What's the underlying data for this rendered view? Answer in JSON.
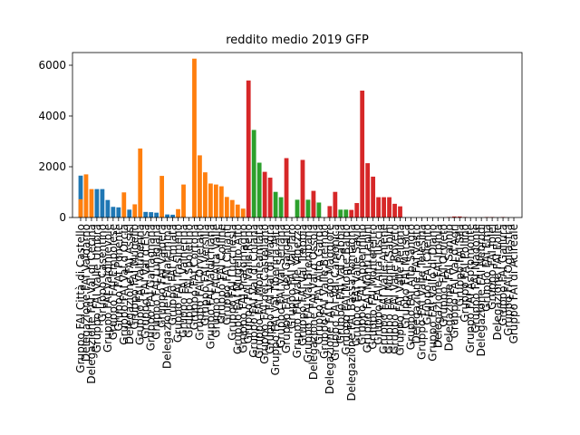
{
  "chart_data": {
    "type": "bar",
    "title": "reddito medio  2019  GFP",
    "xlabel": "",
    "ylabel": "",
    "ylim": [
      0,
      6500
    ],
    "yticks": [
      0,
      2000,
      4000,
      6000
    ],
    "grid": false,
    "legend": "none",
    "colors": {
      "blue": "#1f77b4",
      "orange": "#ff7f0e",
      "green": "#2ca02c",
      "red": "#d62728"
    },
    "categories": [
      "Gruppo FAI Città di Castello",
      "Delegazione FAI Valdarno",
      "Delegazione FAI Val di Cecina",
      "Gruppo FAI Valle Umbra",
      "Gruppo Casentino",
      "Gruppo FAI Valdinievole",
      "Gruppo FAI Empolese",
      "Gruppo FAI Ponente",
      "Gruppo FAI Val d'Orcia",
      "Delegazione FAI Assisi",
      "Gruppo FAI Mugello",
      "Gruppo FAI Valtiberina",
      "Gruppo FAI Val d'Elsa",
      "Gruppo FAI Garfagnana",
      "Gruppo FAI Lunigiana",
      "Gruppo FAI Valdera",
      "Delegazione FAI Maremma",
      "Gruppo FAI Amiata",
      "Gruppo FAI Trasimeno",
      "Gruppo FAI Valnerina",
      "Gruppo FAI Spoletino",
      "Gruppo FAI Cortona",
      "Gruppo FAI Orvietano",
      "Gruppo FAI Versilia",
      "Gruppo FAI Valdichiana",
      "Gruppo FAI Alta Valle",
      "Gruppo FAI Colline",
      "Gruppo FAI Chianti",
      "Gruppo FAI Lucchesia",
      "Gruppo FAI Mugello Alto",
      "Gruppo FAI Pratomagno",
      "Gruppo FAI Valle Reno",
      "Gruppo FAI Val di Chiana",
      "Gruppo FAI Monteamiata",
      "Gruppo FAI del Castellano",
      "Gruppo FAI Val di Magra",
      "Gruppo FAI Val Tiberina Alta",
      "Gruppo FAI Val Seriana",
      "Gruppo FAI del Gargano",
      "Gruppo FAI Val Taro",
      "Gruppo FAI Valle Vigezzo",
      "Gruppo FAI Val Trebbia",
      "Gruppo FAI Val Brembana",
      "Delegazione FAI Val d'Ossola",
      "Gruppo FAI Alto Garda",
      "Gruppo FAI Valle Brembo",
      "Delegazione FAI Lago Maggiore",
      "Gruppo FAI Val Camonica",
      "Gruppo FAI Val Sabbia",
      "Gruppo FAI Monte Baldo",
      "Delegazione FAI Bassa Romagna",
      "Gruppo FAI Valle Savio",
      "Gruppo FAI Appennino",
      "Gruppo FAI Monti Lepini",
      "Gruppo FAI Montefeltro",
      "Gruppo FAI Alta Tuscia",
      "Gruppo FAI Valle Aniene",
      "Gruppo FAI Monti Sabini",
      "Gruppo FAI Valle Roveto",
      "Gruppo FAI Valle Peligna",
      "Gruppo FAI Marsica",
      "Gruppo FAI Alto Sangro",
      "Delegazione FAI Vasto",
      "Gruppo FAI Valle Telesina",
      "Gruppo FAI Cilento",
      "Gruppo FAI Vallo di Diano",
      "Delegazione FAI Irpinia",
      "Gruppo FAI Orvieto",
      "Delegazione FAI Sannio",
      "Gruppo FAI Val d'Agri",
      "Gruppo FAI Sila",
      "Gruppo FAI Pollino",
      "Gruppo FAI Aspromonte",
      "Gruppo FAI Madonie",
      "Delegazione FAI Nebrodi",
      "Gruppo FAI Etna",
      "Gruppo FAI Iblei",
      "Delegazione FAI Eolie",
      "Gruppo FAI Gallura",
      "Gruppo FAI Ogliastra",
      "Gruppo FAI di Acireale"
    ],
    "series": [
      {
        "color": "#1f77b4",
        "values": [
          1650,
          0,
          0,
          1120,
          1120,
          690,
          420,
          400,
          0,
          310,
          0,
          0,
          220,
          210,
          190,
          0,
          120,
          110,
          0,
          80,
          0,
          0,
          90,
          0,
          0,
          0,
          0,
          0,
          70,
          0,
          0,
          0,
          0,
          0,
          0,
          0,
          0,
          0,
          0,
          0,
          0,
          0,
          0,
          0,
          0,
          0,
          0,
          0,
          0,
          0,
          0,
          0,
          0,
          0,
          0,
          0,
          0,
          0,
          0,
          0,
          0,
          0,
          0,
          0,
          0,
          0,
          0,
          0,
          0,
          0,
          0,
          0,
          0,
          0,
          0,
          0,
          0,
          0,
          0,
          0,
          0
        ]
      },
      {
        "color": "#ff7f0e",
        "values": [
          720,
          1700,
          1120,
          0,
          0,
          0,
          0,
          0,
          990,
          0,
          520,
          2720,
          0,
          0,
          0,
          1640,
          0,
          0,
          330,
          1300,
          0,
          6260,
          2450,
          1780,
          1340,
          1300,
          1230,
          810,
          690,
          510,
          350,
          300,
          0,
          0,
          0,
          0,
          0,
          0,
          0,
          0,
          0,
          0,
          0,
          0,
          0,
          0,
          0,
          0,
          0,
          0,
          0,
          0,
          0,
          0,
          0,
          0,
          0,
          0,
          0,
          0,
          0,
          0,
          0,
          0,
          0,
          0,
          0,
          0,
          0,
          0,
          0,
          0,
          0,
          0,
          0,
          0,
          0,
          0,
          0,
          0,
          0
        ]
      },
      {
        "color": "#2ca02c",
        "values": [
          0,
          0,
          0,
          0,
          0,
          0,
          0,
          0,
          0,
          0,
          0,
          0,
          0,
          0,
          0,
          0,
          0,
          0,
          0,
          0,
          0,
          0,
          0,
          0,
          0,
          0,
          0,
          0,
          0,
          0,
          0,
          0,
          3450,
          2160,
          0,
          0,
          1010,
          800,
          0,
          0,
          700,
          0,
          700,
          650,
          590,
          0,
          0,
          0,
          310,
          310,
          0,
          0,
          0,
          0,
          0,
          0,
          0,
          0,
          0,
          0,
          0,
          0,
          0,
          0,
          0,
          0,
          0,
          0,
          0,
          0,
          0,
          0,
          0,
          0,
          0,
          0,
          0,
          0,
          0,
          0,
          0
        ]
      },
      {
        "color": "#d62728",
        "values": [
          0,
          0,
          0,
          0,
          0,
          0,
          0,
          0,
          0,
          0,
          0,
          0,
          0,
          0,
          0,
          0,
          0,
          0,
          0,
          0,
          0,
          0,
          0,
          0,
          0,
          0,
          0,
          0,
          0,
          0,
          0,
          5400,
          0,
          0,
          1800,
          1570,
          0,
          0,
          2340,
          0,
          0,
          2270,
          0,
          1050,
          0,
          0,
          450,
          1010,
          0,
          0,
          300,
          570,
          5000,
          2140,
          1610,
          800,
          800,
          800,
          540,
          440,
          0,
          0,
          0,
          0,
          0,
          0,
          0,
          0,
          20,
          40,
          40,
          20,
          0,
          0,
          0,
          20,
          20,
          0,
          20,
          0,
          0
        ]
      }
    ]
  }
}
